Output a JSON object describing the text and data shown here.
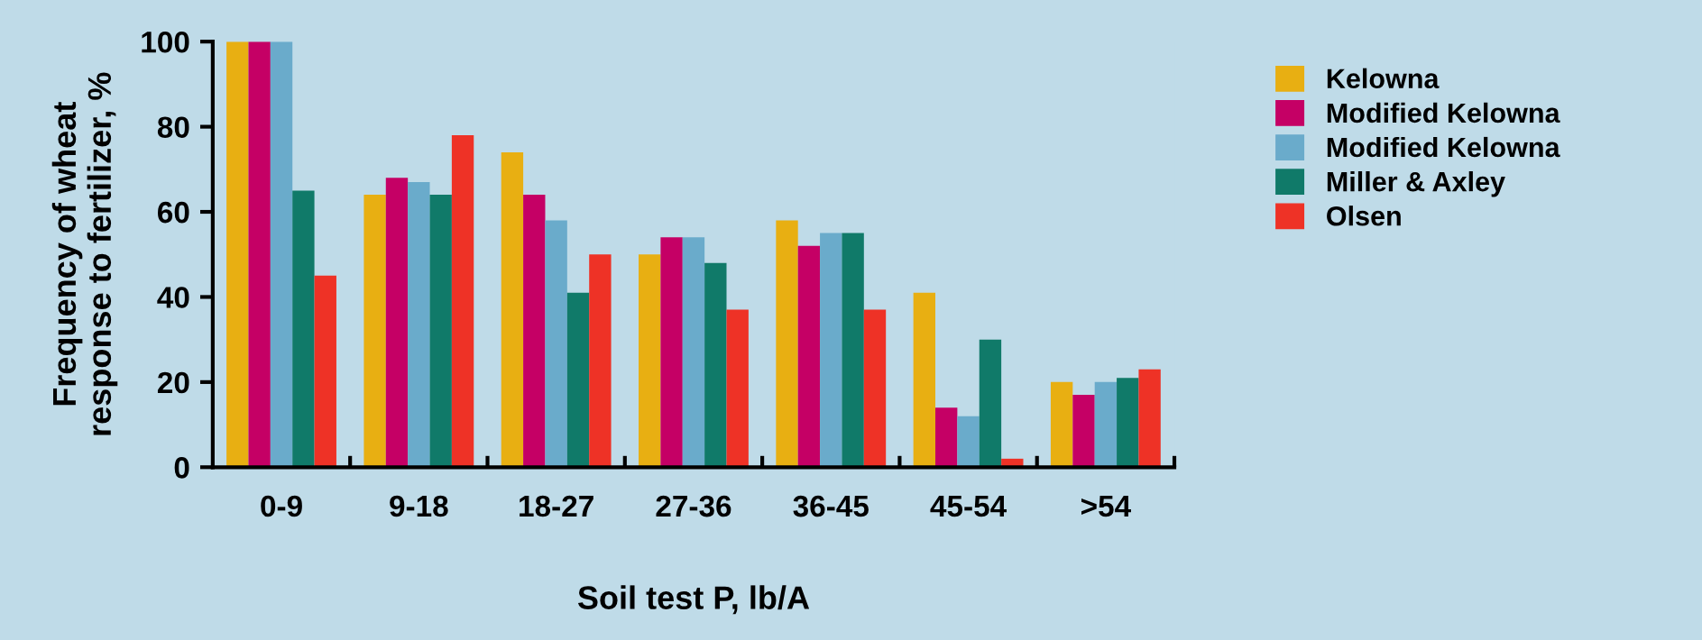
{
  "chart_data": {
    "type": "bar",
    "xlabel": "Soil test P, lb/A",
    "ylabel": "Frequency of wheat\nresponse to fertilizer, %",
    "categories": [
      "0-9",
      "9-18",
      "18-27",
      "27-36",
      "36-45",
      "45-54",
      ">54"
    ],
    "series": [
      {
        "name": "Kelowna",
        "color": "#e8af12",
        "values": [
          100,
          64,
          74,
          50,
          58,
          41,
          20
        ]
      },
      {
        "name": "Modified Kelowna",
        "color": "#c50065",
        "values": [
          100,
          68,
          64,
          54,
          52,
          14,
          17
        ]
      },
      {
        "name": "Modified Kelowna",
        "color": "#6aabcb",
        "values": [
          100,
          67,
          58,
          54,
          55,
          12,
          20
        ]
      },
      {
        "name": "Miller & Axley",
        "color": "#107a69",
        "values": [
          65,
          64,
          41,
          48,
          55,
          30,
          21
        ]
      },
      {
        "name": "Olsen",
        "color": "#ee3226",
        "values": [
          45,
          78,
          50,
          37,
          37,
          2,
          23
        ]
      }
    ],
    "ylim": [
      0,
      100
    ],
    "yticks": [
      0,
      20,
      40,
      60,
      80,
      100
    ],
    "grid": false,
    "legend": "top right"
  }
}
